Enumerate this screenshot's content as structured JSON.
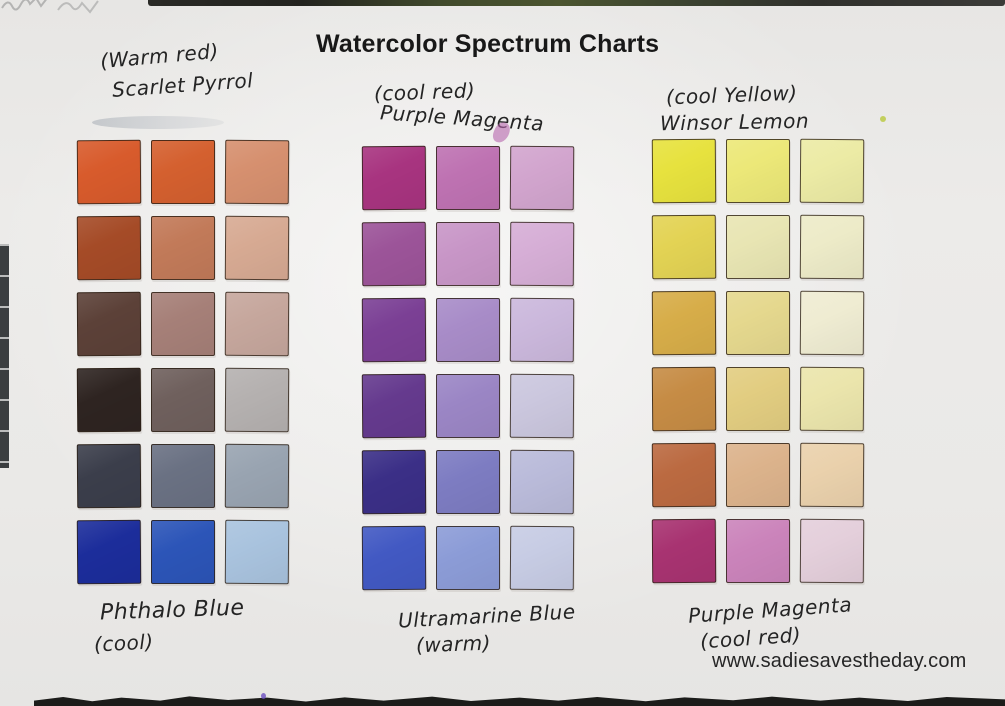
{
  "title": "Watercolor Spectrum Charts",
  "website": "www.sadiesavestheday.com",
  "charts": [
    {
      "name": "warm-red-scarlet-pyrrol-with-phthalo-blue",
      "top_label": [
        "(Warm red)",
        "Scarlet Pyrrol"
      ],
      "bottom_label": [
        "Phthalo Blue",
        "(cool)"
      ],
      "swatch_rows": [
        [
          "#d85b2c",
          "#d4602f",
          "#d6906f"
        ],
        [
          "#a54b27",
          "#c27a59",
          "#d7aa93"
        ],
        [
          "#5c4138",
          "#a68078",
          "#c6a79d"
        ],
        [
          "#2e2421",
          "#6f605d",
          "#b5b1b0"
        ],
        [
          "#3b3e4b",
          "#6a7183",
          "#99a4b1"
        ],
        [
          "#1c2d9b",
          "#2c55b8",
          "#a9c3de"
        ]
      ]
    },
    {
      "name": "cool-red-purple-magenta-with-ultramarine-blue",
      "top_label": [
        "(cool red)",
        "Purple Magenta"
      ],
      "bottom_label": [
        "Ultramarine Blue",
        "(warm)"
      ],
      "swatch_rows": [
        [
          "#a83480",
          "#be72b2",
          "#d2a5ce"
        ],
        [
          "#9c5499",
          "#c896c7",
          "#d6aed6"
        ],
        [
          "#7b4095",
          "#a88cc8",
          "#cbb8dc"
        ],
        [
          "#653a8e",
          "#9b86c5",
          "#cbc7de"
        ],
        [
          "#3b2f87",
          "#7d7cc2",
          "#babbda"
        ],
        [
          "#4259c3",
          "#8c9cd7",
          "#c7cce4"
        ]
      ]
    },
    {
      "name": "cool-yellow-winsor-lemon-with-purple-magenta",
      "top_label": [
        "(cool Yellow)",
        "Winsor Lemon"
      ],
      "bottom_label": [
        "Purple Magenta",
        "(cool red)"
      ],
      "swatch_rows": [
        [
          "#e7e23e",
          "#ece878",
          "#eceba5"
        ],
        [
          "#e3d354",
          "#e8e5b3",
          "#edebc8"
        ],
        [
          "#d7ad49",
          "#e5d88e",
          "#efecd2"
        ],
        [
          "#c68c45",
          "#e2cd81",
          "#ebe5ac"
        ],
        [
          "#bb6a41",
          "#dcb38c",
          "#ead1ac"
        ],
        [
          "#a83371",
          "#cb84bb",
          "#e4cfdb"
        ]
      ]
    }
  ]
}
